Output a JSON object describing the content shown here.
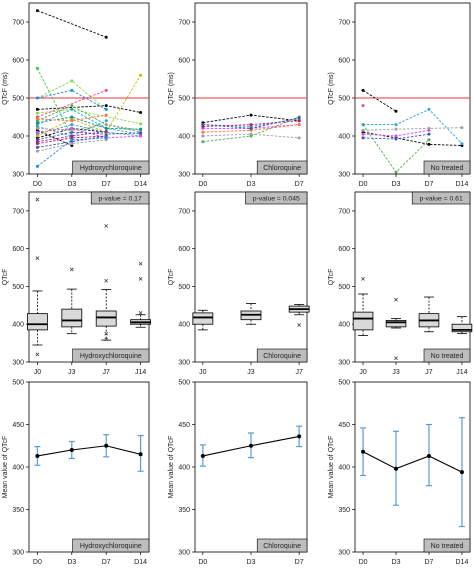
{
  "chart_data": [
    {
      "type": "line",
      "panel": "row1-col1",
      "x": [
        "D0",
        "D3",
        "D7",
        "D14"
      ],
      "ylabel": "QTcF (ms)",
      "ylim": [
        300,
        750
      ],
      "yticks": [
        300,
        400,
        500,
        600,
        700
      ],
      "reference_line": 500,
      "panel_label": "Hydroxychloroquine",
      "series": [
        {
          "color": "#000000",
          "values": [
            730,
            null,
            660,
            null
          ]
        },
        {
          "color": "#000000",
          "values": [
            470,
            null,
            480,
            462
          ]
        },
        {
          "color": "#000000",
          "values": [
            415,
            375,
            null,
            null
          ]
        },
        {
          "color": "#000000",
          "values": [
            395,
            420,
            410,
            null
          ]
        },
        {
          "color": "#2ecc40",
          "values": [
            578,
            400,
            null,
            null
          ]
        },
        {
          "color": "#7fdc3c",
          "values": [
            500,
            545,
            470,
            null
          ]
        },
        {
          "color": "#7fdc3c",
          "values": [
            460,
            470,
            null,
            432
          ]
        },
        {
          "color": "#4caf50",
          "values": [
            440,
            480,
            430,
            410
          ]
        },
        {
          "color": "#2aa5c7",
          "values": [
            430,
            470,
            420,
            405
          ]
        },
        {
          "color": "#2aa5c7",
          "values": [
            425,
            400,
            440,
            null
          ]
        },
        {
          "color": "#2aa5c7",
          "values": [
            405,
            430,
            410,
            400
          ]
        },
        {
          "color": "#e040fb",
          "values": [
            410,
            420,
            395,
            400
          ]
        },
        {
          "color": "#c2185b",
          "values": [
            380,
            395,
            400,
            null
          ]
        },
        {
          "color": "#ff4081",
          "values": [
            450,
            null,
            520,
            null
          ]
        },
        {
          "color": "#3f51b5",
          "values": [
            390,
            410,
            405,
            408
          ]
        },
        {
          "color": "#3f51b5",
          "values": [
            370,
            385,
            400,
            null
          ]
        },
        {
          "color": "#9e9e9e",
          "values": [
            420,
            415,
            430,
            415
          ]
        },
        {
          "color": "#9e9e9e",
          "values": [
            360,
            380,
            390,
            null
          ]
        },
        {
          "color": "#d4b106",
          "values": [
            400,
            445,
            410,
            560
          ]
        },
        {
          "color": "#009688",
          "values": [
            435,
            450,
            420,
            418
          ]
        },
        {
          "color": "#1e88e5",
          "values": [
            320,
            390,
            395,
            null
          ]
        },
        {
          "color": "#1e88e5",
          "values": [
            500,
            520,
            470,
            null
          ]
        },
        {
          "color": "#ff7043",
          "values": [
            445,
            440,
            455,
            null
          ]
        },
        {
          "color": "#8e24aa",
          "values": [
            385,
            400,
            412,
            null
          ]
        }
      ]
    },
    {
      "type": "line",
      "panel": "row1-col2",
      "x": [
        "D0",
        "D3",
        "D7"
      ],
      "ylabel": "QTcF (ms)",
      "ylim": [
        300,
        750
      ],
      "yticks": [
        300,
        400,
        500,
        600,
        700
      ],
      "reference_line": 500,
      "panel_label": "Chloroquine",
      "series": [
        {
          "color": "#000000",
          "values": [
            435,
            455,
            440
          ]
        },
        {
          "color": "#4caf50",
          "values": [
            385,
            400,
            450
          ]
        },
        {
          "color": "#2aa5c7",
          "values": [
            430,
            425,
            445
          ]
        },
        {
          "color": "#e040fb",
          "values": [
            420,
            420,
            430
          ]
        },
        {
          "color": "#c2185b",
          "values": [
            425,
            430,
            440
          ]
        },
        {
          "color": "#9e9e9e",
          "values": [
            400,
            405,
            395
          ]
        },
        {
          "color": "#ff7043",
          "values": [
            410,
            415,
            430
          ]
        },
        {
          "color": "#3f51b5",
          "values": [
            430,
            420,
            448
          ]
        }
      ]
    },
    {
      "type": "line",
      "panel": "row1-col3",
      "x": [
        "D0",
        "D3",
        "D7",
        "D14"
      ],
      "ylabel": "QTcF (ms)",
      "ylim": [
        300,
        750
      ],
      "yticks": [
        300,
        400,
        500,
        600,
        700
      ],
      "reference_line": 500,
      "panel_label": "No treated",
      "series": [
        {
          "color": "#000000",
          "values": [
            520,
            465,
            null,
            null
          ]
        },
        {
          "color": "#000000",
          "values": [
            410,
            395,
            378,
            375
          ]
        },
        {
          "color": "#4caf50",
          "values": [
            430,
            305,
            390,
            null
          ]
        },
        {
          "color": "#2aa5c7",
          "values": [
            430,
            430,
            470,
            380
          ]
        },
        {
          "color": "#e040fb",
          "values": [
            405,
            400,
            415,
            null
          ]
        },
        {
          "color": "#ff4081",
          "values": [
            480,
            null,
            null,
            null
          ]
        },
        {
          "color": "#9e9e9e",
          "values": [
            415,
            418,
            420,
            422
          ]
        },
        {
          "color": "#3f51b5",
          "values": [
            395,
            392,
            405,
            null
          ]
        }
      ]
    },
    {
      "type": "boxplot",
      "panel": "row2-col1",
      "categories": [
        "J0",
        "J3",
        "J7",
        "J14"
      ],
      "ylabel": "QTcF",
      "ylim": [
        300,
        750
      ],
      "yticks": [
        300,
        400,
        500,
        600,
        700
      ],
      "pvalue_label": "p-value = 0.17",
      "panel_label": "Hydroxychloroquine",
      "boxes": [
        {
          "min": 345,
          "q1": 385,
          "median": 400,
          "q3": 428,
          "max": 488,
          "outliers": [
            730,
            575,
            320
          ]
        },
        {
          "min": 375,
          "q1": 393,
          "median": 410,
          "q3": 440,
          "max": 493,
          "outliers": [
            545
          ]
        },
        {
          "min": 358,
          "q1": 395,
          "median": 418,
          "q3": 435,
          "max": 492,
          "outliers": [
            660,
            515,
            375,
            360
          ]
        },
        {
          "min": 392,
          "q1": 400,
          "median": 405,
          "q3": 412,
          "max": 425,
          "outliers": [
            560,
            520,
            430
          ]
        }
      ]
    },
    {
      "type": "boxplot",
      "panel": "row2-col2",
      "categories": [
        "J0",
        "J3",
        "J7"
      ],
      "ylabel": "QTcF",
      "ylim": [
        300,
        750
      ],
      "yticks": [
        300,
        400,
        500,
        600,
        700
      ],
      "pvalue_label": "p-value = 0.045",
      "panel_label": "Chloroquine",
      "boxes": [
        {
          "min": 385,
          "q1": 400,
          "median": 418,
          "q3": 430,
          "max": 437,
          "outliers": []
        },
        {
          "min": 400,
          "q1": 412,
          "median": 425,
          "q3": 435,
          "max": 455,
          "outliers": []
        },
        {
          "min": 425,
          "q1": 432,
          "median": 440,
          "q3": 448,
          "max": 452,
          "outliers": [
            398
          ]
        }
      ]
    },
    {
      "type": "boxplot",
      "panel": "row2-col3",
      "categories": [
        "J0",
        "J3",
        "J7",
        "J14"
      ],
      "ylabel": "QTcF",
      "ylim": [
        300,
        750
      ],
      "yticks": [
        300,
        400,
        500,
        600,
        700
      ],
      "pvalue_label": "p-value = 0.61",
      "panel_label": "No treated",
      "boxes": [
        {
          "min": 370,
          "q1": 385,
          "median": 415,
          "q3": 432,
          "max": 480,
          "outliers": [
            520
          ]
        },
        {
          "min": 390,
          "q1": 393,
          "median": 405,
          "q3": 410,
          "max": 415,
          "outliers": [
            465,
            310
          ]
        },
        {
          "min": 380,
          "q1": 393,
          "median": 410,
          "q3": 428,
          "max": 472,
          "outliers": []
        },
        {
          "min": 375,
          "q1": 380,
          "median": 385,
          "q3": 400,
          "max": 420,
          "outliers": []
        }
      ]
    },
    {
      "type": "line",
      "panel": "row3-col1",
      "x": [
        "D0",
        "D3",
        "D7",
        "D14"
      ],
      "ylabel": "Mean value of QTcF",
      "ylim": [
        300,
        500
      ],
      "yticks": [
        300,
        350,
        400,
        450,
        500
      ],
      "panel_label": "Hydroxychloroquine",
      "series": [
        {
          "color": "#000000",
          "values": [
            413,
            420,
            425,
            415
          ],
          "error_low": [
            402,
            410,
            412,
            395
          ],
          "error_high": [
            424,
            430,
            438,
            437
          ]
        }
      ]
    },
    {
      "type": "line",
      "panel": "row3-col2",
      "x": [
        "D0",
        "D3",
        "D7"
      ],
      "ylabel": "Mean value of QTcF",
      "ylim": [
        300,
        500
      ],
      "yticks": [
        300,
        350,
        400,
        450,
        500
      ],
      "panel_label": "Chloroquine",
      "series": [
        {
          "color": "#000000",
          "values": [
            413,
            425,
            436
          ],
          "error_low": [
            401,
            411,
            424
          ],
          "error_high": [
            426,
            440,
            448
          ]
        }
      ]
    },
    {
      "type": "line",
      "panel": "row3-col3",
      "x": [
        "D0",
        "D3",
        "D7",
        "D14"
      ],
      "ylabel": "Mean value of QTcF",
      "ylim": [
        300,
        500
      ],
      "yticks": [
        300,
        350,
        400,
        450,
        500
      ],
      "panel_label": "No treated",
      "series": [
        {
          "color": "#000000",
          "values": [
            418,
            398,
            413,
            394
          ],
          "error_low": [
            390,
            355,
            378,
            330
          ],
          "error_high": [
            446,
            442,
            450,
            458
          ]
        }
      ]
    }
  ]
}
